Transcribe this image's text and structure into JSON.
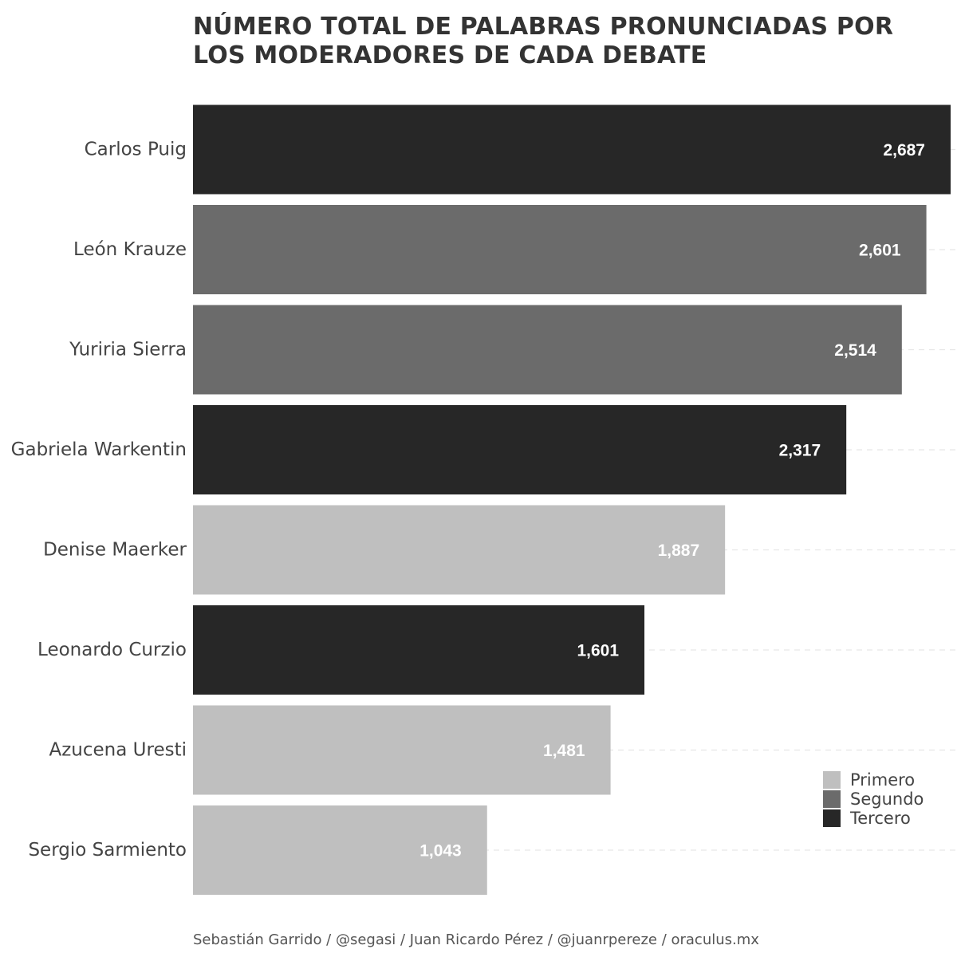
{
  "chart_data": {
    "type": "bar",
    "orientation": "horizontal",
    "title": "NÚMERO TOTAL DE PALABRAS PRONUNCIADAS POR LOS MODERADORES DE CADA DEBATE",
    "caption": "Sebastián Garrido / @segasi / Juan Ricardo Pérez / @juanrpereze / oraculus.mx",
    "xlabel": "",
    "ylabel": "",
    "xlim": [
      0,
      2687
    ],
    "grid": "horizontal dashed",
    "legend_position": "bottom-right",
    "categories": [
      "Carlos Puig",
      "León Krauze",
      "Yuriria Sierra",
      "Gabriela Warkentin",
      "Denise Maerker",
      "Leonardo Curzio",
      "Azucena Uresti",
      "Sergio Sarmiento"
    ],
    "values": [
      2687,
      2601,
      2514,
      2317,
      1887,
      1601,
      1481,
      1043
    ],
    "value_labels": [
      "2,687",
      "2,601",
      "2,514",
      "2,317",
      "1,887",
      "1,601",
      "1,481",
      "1,043"
    ],
    "groups": [
      "Tercero",
      "Segundo",
      "Segundo",
      "Tercero",
      "Primero",
      "Tercero",
      "Primero",
      "Primero"
    ],
    "legend": [
      {
        "name": "Primero",
        "color": "#bfbfbf"
      },
      {
        "name": "Segundo",
        "color": "#6b6b6b"
      },
      {
        "name": "Tercero",
        "color": "#272727"
      }
    ]
  }
}
